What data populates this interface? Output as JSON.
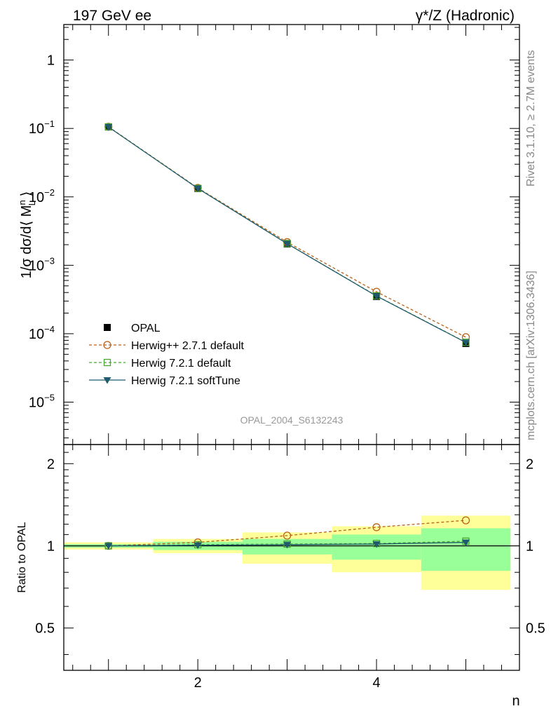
{
  "header": {
    "left": "197 GeV ee",
    "right": "γ*/Z (Hadronic)"
  },
  "side": {
    "rivet": "Rivet 3.1.10, ≥ 2.7M events",
    "mcplots": "mcplots.cern.ch [arXiv:1306.3436]"
  },
  "analysis_label": "OPAL_2004_S6132243",
  "colors": {
    "opal": "#000000",
    "herwigpp": "#b8621a",
    "herwig721": "#4aa832",
    "softtune": "#1f5a6e",
    "band_outer": "#ffff99",
    "band_inner": "#99ff99"
  },
  "chart_data": [
    {
      "type": "line",
      "panel": "main",
      "xlabel": "",
      "ylabel": "1/σ dσ/d⟨ M_L^n ⟩",
      "xlim": [
        0.5,
        5.6
      ],
      "ylim": [
        2.4e-06,
        3.3
      ],
      "log_y": true,
      "y_ticks": [
        {
          "value": 1e-05,
          "label": "10",
          "exp": "−5"
        },
        {
          "value": 0.0001,
          "label": "10",
          "exp": "−4"
        },
        {
          "value": 0.001,
          "label": "10",
          "exp": "−3"
        },
        {
          "value": 0.01,
          "label": "10",
          "exp": "−2"
        },
        {
          "value": 0.1,
          "label": "10",
          "exp": "−1"
        },
        {
          "value": 1,
          "label": "1",
          "exp": ""
        }
      ],
      "x": [
        1,
        2,
        3,
        4,
        5
      ],
      "series": [
        {
          "name": "OPAL",
          "key": "opal",
          "style": "points",
          "values": [
            0.105,
            0.0132,
            0.00205,
            0.00035,
            7.2e-05
          ]
        },
        {
          "name": "Herwig++ 2.7.1 default",
          "key": "herwigpp",
          "style": "dashed-circle",
          "values": [
            0.106,
            0.0135,
            0.00218,
            0.00041,
            8.9e-05
          ]
        },
        {
          "name": "Herwig 7.2.1 default",
          "key": "herwig721",
          "style": "dashed-square",
          "values": [
            0.1055,
            0.0133,
            0.00208,
            0.000358,
            7.5e-05
          ]
        },
        {
          "name": "Herwig 7.2.1 softTune",
          "key": "softtune",
          "style": "solid-triangle",
          "values": [
            0.105,
            0.0133,
            0.00207,
            0.000355,
            7.45e-05
          ]
        }
      ],
      "legend": "lower-left"
    },
    {
      "type": "line",
      "panel": "ratio",
      "xlabel": "n",
      "ylabel": "Ratio to OPAL",
      "xlim": [
        0.5,
        5.6
      ],
      "ylim": [
        0.35,
        2.35
      ],
      "x_ticks": [
        2,
        4
      ],
      "y_ticks": [
        0.5,
        1,
        2
      ],
      "x": [
        1,
        2,
        3,
        4,
        5
      ],
      "bands": [
        {
          "x0": 0.5,
          "x1": 1.5,
          "outer": [
            0.97,
            1.03
          ],
          "inner": [
            0.985,
            1.015
          ]
        },
        {
          "x0": 1.5,
          "x1": 2.5,
          "outer": [
            0.94,
            1.06
          ],
          "inner": [
            0.965,
            1.035
          ]
        },
        {
          "x0": 2.5,
          "x1": 3.5,
          "outer": [
            0.86,
            1.12
          ],
          "inner": [
            0.93,
            1.06
          ]
        },
        {
          "x0": 3.5,
          "x1": 4.5,
          "outer": [
            0.8,
            1.18
          ],
          "inner": [
            0.89,
            1.1
          ]
        },
        {
          "x0": 4.5,
          "x1": 5.5,
          "outer": [
            0.69,
            1.29
          ],
          "inner": [
            0.81,
            1.16
          ]
        }
      ],
      "series": [
        {
          "name": "Herwig++ 2.7.1 default",
          "key": "herwigpp",
          "values": [
            1.0,
            1.03,
            1.09,
            1.17,
            1.24
          ]
        },
        {
          "name": "Herwig 7.2.1 default",
          "key": "herwig721",
          "values": [
            1.0,
            1.01,
            1.015,
            1.02,
            1.04
          ]
        },
        {
          "name": "Herwig 7.2.1 softTune",
          "key": "softtune",
          "values": [
            1.0,
            1.005,
            1.01,
            1.015,
            1.03
          ]
        }
      ]
    }
  ]
}
